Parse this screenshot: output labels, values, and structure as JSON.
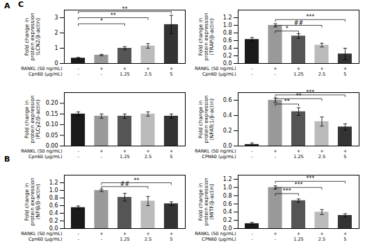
{
  "annotations": [
    "A",
    "B",
    "C"
  ],
  "chart_data": [
    {
      "type": "bar",
      "ylabel": "Fold change in protein expression (LCN2/β-actin)",
      "xlabel": [
        "RANKL (50 ng/mL)",
        "Cpn60 (μg/mL)"
      ],
      "categories": [
        [
          "-",
          "-"
        ],
        [
          "+",
          "-"
        ],
        [
          "+",
          "1.25"
        ],
        [
          "+",
          "2.5"
        ],
        [
          "+",
          "5"
        ]
      ],
      "values": [
        0.35,
        0.55,
        1.0,
        1.15,
        2.55
      ],
      "errors": [
        0.05,
        0.05,
        0.1,
        0.15,
        0.6
      ],
      "colors": [
        "#1a1a1a",
        "#999999",
        "#555555",
        "#bbbbbb",
        "#333333"
      ],
      "ylim": [
        0,
        3.5
      ],
      "yticks": [
        0,
        1,
        2,
        3
      ],
      "brackets": [
        {
          "from": 0,
          "to": 2,
          "y": 2.6,
          "label": "*"
        },
        {
          "from": 0,
          "to": 3,
          "y": 3.0,
          "label": "**"
        },
        {
          "from": 0,
          "to": 4,
          "y": 3.4,
          "label": "**"
        }
      ],
      "grid": false
    },
    {
      "type": "bar",
      "ylabel": "Fold change in protein expression (TRAP/β-actin)",
      "xlabel": [
        "RANKL (50 ng/mL)",
        "Cpn60 (μg/mL)"
      ],
      "categories": [
        [
          "-",
          "-"
        ],
        [
          "+",
          "-"
        ],
        [
          "+",
          "1.25"
        ],
        [
          "+",
          "2.5"
        ],
        [
          "+",
          "5"
        ]
      ],
      "values": [
        0.63,
        1.0,
        0.72,
        0.48,
        0.25
      ],
      "errors": [
        0.05,
        0.04,
        0.06,
        0.05,
        0.15
      ],
      "colors": [
        "#1a1a1a",
        "#999999",
        "#555555",
        "#bbbbbb",
        "#333333"
      ],
      "ylim": [
        0,
        1.4
      ],
      "yticks": [
        {
          "value": 0,
          "label": "0.0"
        },
        0.2,
        0.4,
        0.6,
        0.8,
        {
          "value": 1,
          "label": "1.0"
        },
        1.2
      ],
      "brackets": [
        {
          "from": 1,
          "to": 2,
          "y": 0.85,
          "label": "*"
        },
        {
          "from": 1,
          "to": 3,
          "y": 1.0,
          "label": "##"
        },
        {
          "from": 1,
          "to": 4,
          "y": 1.15,
          "label": "***"
        }
      ],
      "grid": false
    },
    {
      "type": "bar",
      "ylabel": "Fold change in protein expression (PLCy2/β-actin)",
      "xlabel": [
        "RANKL (50 ng/mL)",
        "Cpn60 (μg/mL)"
      ],
      "categories": [
        [
          "-",
          "-"
        ],
        [
          "+",
          "-"
        ],
        [
          "+",
          "1.25"
        ],
        [
          "+",
          "2.5"
        ],
        [
          "+",
          "5"
        ]
      ],
      "values": [
        0.15,
        0.14,
        0.14,
        0.15,
        0.14
      ],
      "errors": [
        0.01,
        0.01,
        0.01,
        0.01,
        0.01
      ],
      "colors": [
        "#1a1a1a",
        "#999999",
        "#555555",
        "#bbbbbb",
        "#333333"
      ],
      "ylim": [
        0,
        0.25
      ],
      "yticks": [
        {
          "value": 0,
          "label": "0.00"
        },
        0.05,
        {
          "value": 0.1,
          "label": "0.10"
        },
        0.15,
        {
          "value": 0.2,
          "label": "0.20"
        }
      ],
      "brackets": [],
      "grid": false
    },
    {
      "type": "bar",
      "ylabel": "Fold change in protein expression (NFATc1/β-actin)",
      "xlabel": [
        "RANKL (50 ng/mL)",
        "CPN60 (μg/mL)"
      ],
      "categories": [
        [
          "-",
          "-"
        ],
        [
          "+",
          "-"
        ],
        [
          "+",
          "1.25"
        ],
        [
          "+",
          "2.5"
        ],
        [
          "+",
          "5"
        ]
      ],
      "values": [
        0.02,
        0.6,
        0.45,
        0.32,
        0.25
      ],
      "errors": [
        0.02,
        0.03,
        0.05,
        0.06,
        0.04
      ],
      "colors": [
        "#1a1a1a",
        "#999999",
        "#555555",
        "#bbbbbb",
        "#333333"
      ],
      "ylim": [
        0,
        0.7
      ],
      "yticks": [
        {
          "value": 0,
          "label": "0.0"
        },
        0.2,
        0.4,
        0.6
      ],
      "brackets": [
        {
          "from": 1,
          "to": 2,
          "y": 0.55,
          "label": "**"
        },
        {
          "from": 1,
          "to": 3,
          "y": 0.62,
          "label": "**"
        },
        {
          "from": 1,
          "to": 4,
          "y": 0.67,
          "label": "***"
        }
      ],
      "grid": false
    },
    {
      "type": "bar",
      "ylabel": "Fold change in protein expression (NFIβ/β-actin)",
      "xlabel": [
        "RANKL (50 ng/mL)",
        "Cpn60 (μg/mL)"
      ],
      "categories": [
        [
          "-",
          "-"
        ],
        [
          "+",
          "-"
        ],
        [
          "+",
          "1.25"
        ],
        [
          "+",
          "2.5"
        ],
        [
          "+",
          "5"
        ]
      ],
      "values": [
        0.55,
        1.0,
        0.82,
        0.72,
        0.65
      ],
      "errors": [
        0.04,
        0.03,
        0.1,
        0.12,
        0.05
      ],
      "colors": [
        "#1a1a1a",
        "#999999",
        "#555555",
        "#bbbbbb",
        "#333333"
      ],
      "ylim": [
        0,
        1.4
      ],
      "yticks": [
        {
          "value": 0,
          "label": "0.0"
        },
        0.2,
        0.4,
        0.6,
        0.8,
        {
          "value": 1,
          "label": "1.0"
        },
        1.2
      ],
      "brackets": [
        {
          "from": 1,
          "to": 3,
          "y": 1.1,
          "label": "##"
        },
        {
          "from": 1,
          "to": 4,
          "y": 1.2,
          "label": "**"
        }
      ],
      "grid": false
    },
    {
      "type": "bar",
      "ylabel": "Fold change in protein expression (MITF/β-actin)",
      "xlabel": [
        "RANKL (50 ng/mL)",
        "CPN60 (μg/mL)"
      ],
      "categories": [
        [
          "-",
          "-"
        ],
        [
          "+",
          "-"
        ],
        [
          "+",
          "1.25"
        ],
        [
          "+",
          "2.5"
        ],
        [
          "+",
          "5"
        ]
      ],
      "values": [
        0.12,
        1.0,
        0.68,
        0.4,
        0.32
      ],
      "errors": [
        0.03,
        0.04,
        0.04,
        0.06,
        0.04
      ],
      "colors": [
        "#1a1a1a",
        "#999999",
        "#555555",
        "#bbbbbb",
        "#333333"
      ],
      "ylim": [
        0,
        1.3
      ],
      "yticks": [
        {
          "value": 0,
          "label": "0.0"
        },
        0.2,
        0.4,
        0.6,
        0.8,
        {
          "value": 1,
          "label": "1.0"
        },
        1.2
      ],
      "brackets": [
        {
          "from": 1,
          "to": 2,
          "y": 0.85,
          "label": "***"
        },
        {
          "from": 1,
          "to": 3,
          "y": 1.0,
          "label": "***"
        },
        {
          "from": 1,
          "to": 4,
          "y": 1.15,
          "label": "***"
        }
      ],
      "grid": false
    }
  ]
}
